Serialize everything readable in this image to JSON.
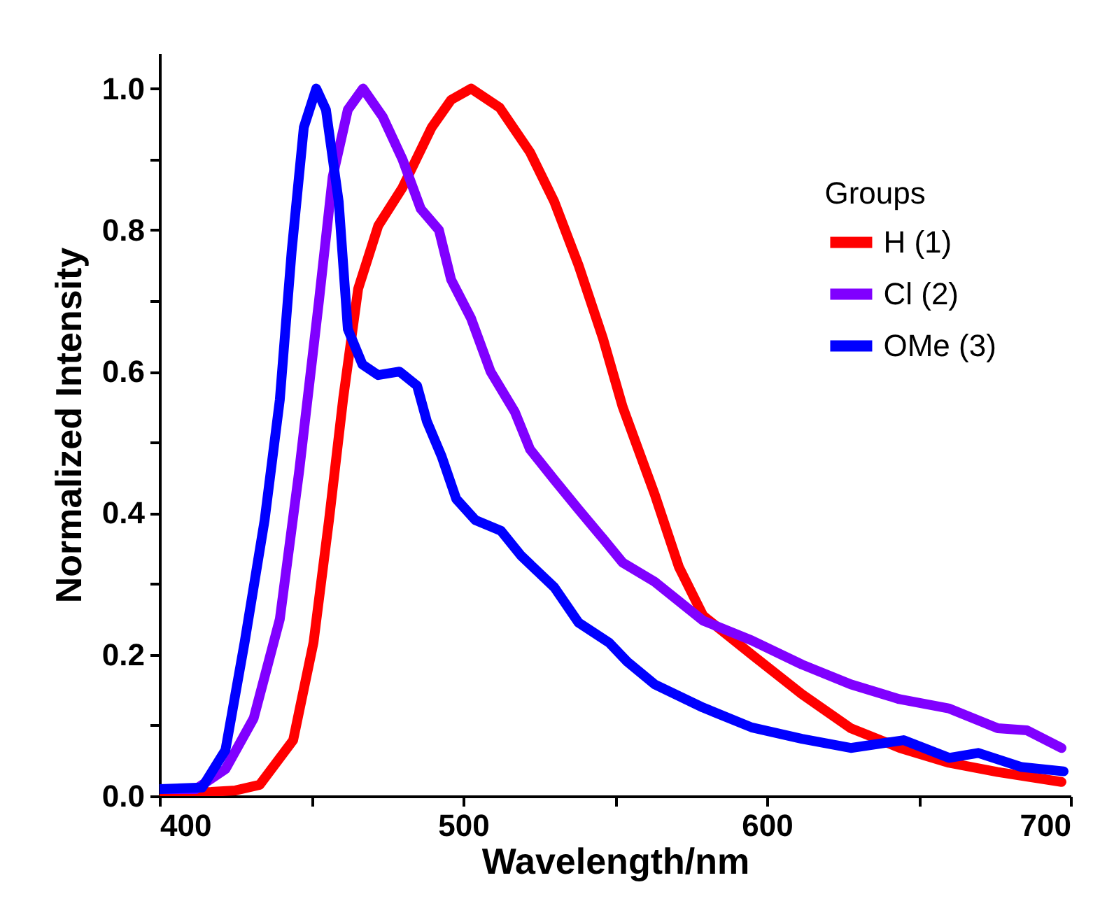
{
  "chart_data": {
    "type": "line",
    "xlabel": "Wavelength/nm",
    "ylabel": "Normalized Intensity",
    "legend_title": "Groups",
    "legend": "right",
    "line_style": "solid",
    "marker": "none",
    "xlim": [
      400,
      700
    ],
    "ylim": [
      0,
      1.05
    ],
    "xticks": [
      400,
      {
        "value": 450,
        "label": null
      },
      500,
      {
        "value": 550,
        "label": null
      },
      600,
      {
        "value": 650,
        "label": null
      },
      700
    ],
    "yticks": [
      {
        "value": 0,
        "label": "0.0"
      },
      {
        "value": 0.1,
        "label": null
      },
      {
        "value": 0.2,
        "label": "0.2"
      },
      {
        "value": 0.3,
        "label": null
      },
      {
        "value": 0.4,
        "label": "0.4"
      },
      {
        "value": 0.5,
        "label": null
      },
      {
        "value": 0.6,
        "label": "0.6"
      },
      {
        "value": 0.7,
        "label": null
      },
      {
        "value": 0.8,
        "label": "0.8"
      },
      {
        "value": 0.9,
        "label": null
      },
      {
        "value": 1,
        "label": "1.0"
      }
    ],
    "series": [
      {
        "name": "H (1)",
        "color": "#ff0000",
        "x": [
          400,
          417,
          425,
          433,
          444,
          450.7,
          455.8,
          460.5,
          465.4,
          472,
          480,
          489.6,
          496,
          502.6,
          512,
          522,
          530,
          538,
          546,
          552.5,
          563,
          571,
          579,
          595,
          611.5,
          627.6,
          643.8,
          660,
          676,
          697
        ],
        "values": [
          0.005,
          0.006,
          0.008,
          0.016,
          0.079,
          0.217,
          0.39,
          0.563,
          0.717,
          0.806,
          0.86,
          0.945,
          0.984,
          1.0,
          0.973,
          0.91,
          0.84,
          0.75,
          0.647,
          0.55,
          0.427,
          0.324,
          0.255,
          0.2,
          0.144,
          0.096,
          0.068,
          0.047,
          0.034,
          0.02
        ]
      },
      {
        "name": "Cl (2)",
        "color": "#8000ff",
        "x": [
          400,
          412,
          421.7,
          431,
          439.6,
          446,
          452.5,
          457,
          462,
          467,
          473.5,
          480,
          486,
          492,
          496,
          502.6,
          509,
          517,
          522,
          530,
          538,
          546,
          552.5,
          563,
          579,
          595,
          611.5,
          627.6,
          643.6,
          659.8,
          676,
          685.6,
          697
        ],
        "values": [
          0.01,
          0.01,
          0.038,
          0.11,
          0.25,
          0.46,
          0.7,
          0.875,
          0.97,
          1.0,
          0.96,
          0.9,
          0.83,
          0.8,
          0.73,
          0.675,
          0.6,
          0.543,
          0.49,
          0.447,
          0.405,
          0.364,
          0.33,
          0.303,
          0.248,
          0.22,
          0.186,
          0.158,
          0.137,
          0.124,
          0.096,
          0.093,
          0.068
        ]
      },
      {
        "name": "OMe (3)",
        "color": "#0000ff",
        "x": [
          400,
          414,
          421.7,
          428,
          434.6,
          439.6,
          443.5,
          447.5,
          451.6,
          454.8,
          459,
          462,
          466.8,
          472,
          479,
          484.8,
          488,
          492.9,
          497.7,
          504,
          512.4,
          519,
          530,
          538,
          548,
          554,
          563,
          579,
          595,
          611.5,
          627.6,
          645,
          660,
          669.6,
          683.9,
          697.7
        ],
        "values": [
          0.01,
          0.012,
          0.065,
          0.217,
          0.39,
          0.56,
          0.77,
          0.945,
          1.0,
          0.97,
          0.84,
          0.66,
          0.61,
          0.595,
          0.6,
          0.58,
          0.53,
          0.48,
          0.42,
          0.39,
          0.375,
          0.34,
          0.295,
          0.245,
          0.217,
          0.19,
          0.158,
          0.125,
          0.097,
          0.081,
          0.068,
          0.079,
          0.054,
          0.061,
          0.041,
          0.035
        ]
      }
    ]
  }
}
